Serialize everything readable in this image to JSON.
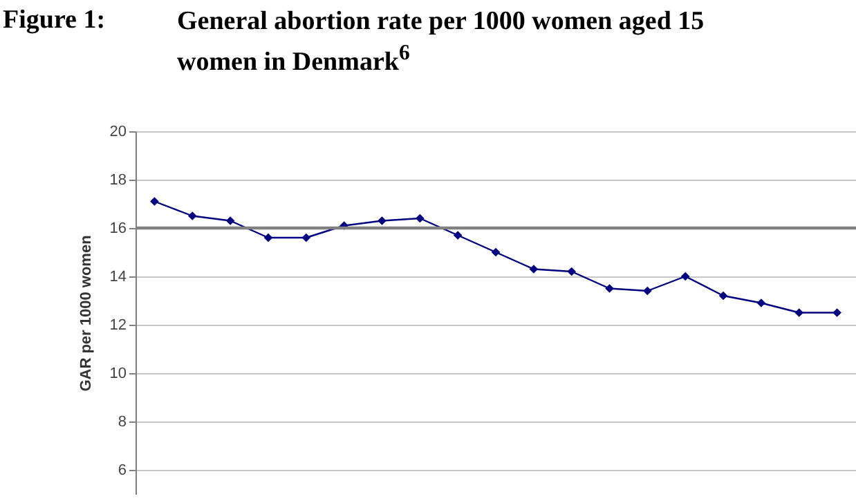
{
  "chart_data": {
    "type": "line",
    "title": "General abortion rate per 1000 women aged 15 women in Denmark$^{6}$",
    "annotations": [
      "Figure 1:"
    ],
    "ylabel": "GAR per 1000 women",
    "categories": [
      null,
      null,
      null,
      null,
      null,
      null,
      null,
      null,
      null,
      null,
      null,
      null,
      null,
      null,
      null,
      null,
      null,
      null,
      null
    ],
    "series": [
      {
        "color": "#000080",
        "values": [
          17.1,
          16.5,
          16.3,
          15.6,
          15.6,
          16.1,
          16.3,
          16.4,
          15.7,
          15.0,
          14.3,
          14.2,
          13.5,
          13.4,
          14.0,
          13.2,
          12.9,
          12.5,
          12.5
        ]
      }
    ],
    "ylim": [
      5,
      20
    ],
    "yticks": [
      6,
      8,
      10,
      12,
      14,
      16,
      18,
      20
    ],
    "ref_lines": [
      {
        "axis": "y",
        "value": 16,
        "color": "#808080"
      }
    ],
    "grid": "y",
    "tick_labels": "y",
    "marker": "diamond",
    "line_style": "solid"
  }
}
